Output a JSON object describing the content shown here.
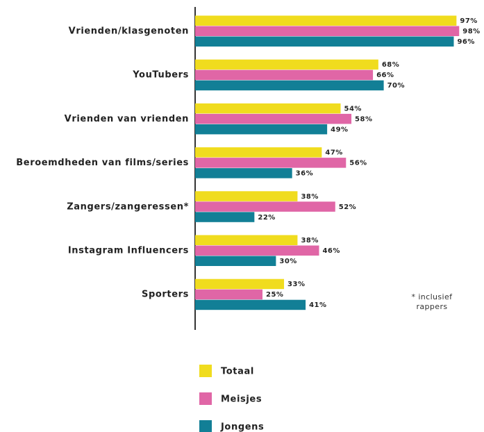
{
  "chart_data": {
    "type": "bar",
    "orientation": "horizontal",
    "categories": [
      "Vrienden/klasgenoten",
      "YouTubers",
      "Vrienden van vrienden",
      "Beroemdheden van films/series",
      "Zangers/zangeressen*",
      "Instagram Influencers",
      "Sporters"
    ],
    "series": [
      {
        "name": "Totaal",
        "color": "#f0dc1e",
        "values": [
          97,
          68,
          54,
          47,
          38,
          38,
          33
        ],
        "value_labels": [
          "97%",
          "68%",
          "54%",
          "47%",
          "38%",
          "38%",
          "33%"
        ]
      },
      {
        "name": "Meisjes",
        "color": "#e066a6",
        "values": [
          98,
          66,
          58,
          56,
          52,
          46,
          25
        ],
        "value_labels": [
          "98%",
          "66%",
          "58%",
          "56%",
          "52%",
          "46%",
          "25%"
        ]
      },
      {
        "name": "Jongens",
        "color": "#127f96",
        "values": [
          96,
          70,
          49,
          36,
          22,
          30,
          41
        ],
        "value_labels": [
          "96%",
          "70%",
          "49%",
          "36%",
          "22%",
          "30%",
          "41%"
        ]
      }
    ],
    "xlim": [
      0,
      100
    ],
    "annotation": "* inclusief rappers",
    "legend": "bottom"
  }
}
